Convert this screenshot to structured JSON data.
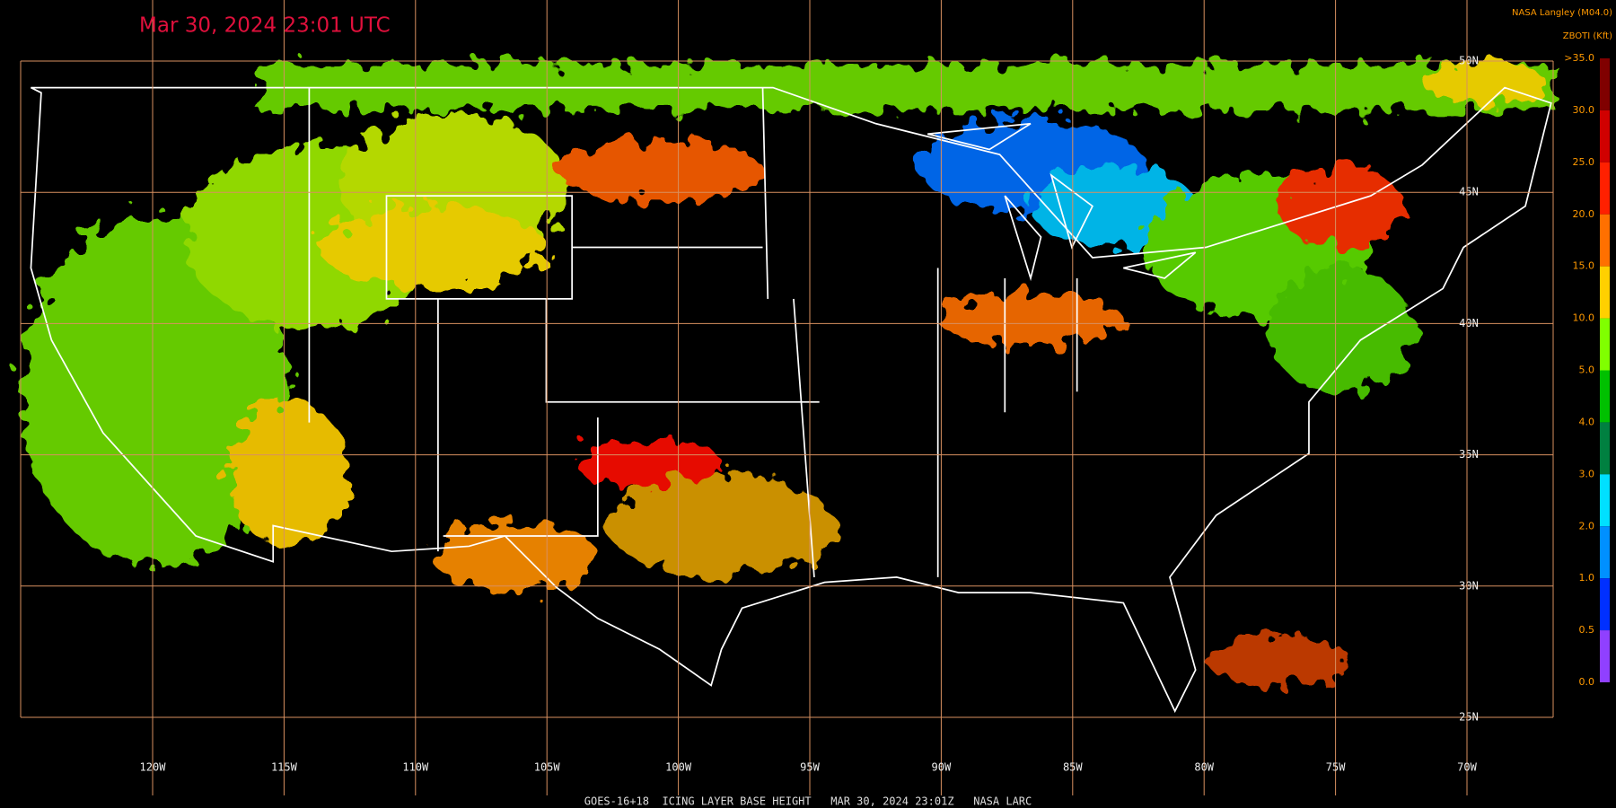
{
  "header": {
    "title": "Mar 30, 2024 23:01 UTC",
    "source": "NASA Langley (M04.0)",
    "product": "ZBOTI (Kft)"
  },
  "colorbar": {
    "labels": [
      ">35.0",
      "30.0",
      "25.0",
      "20.0",
      "15.0",
      "10.0",
      "5.0",
      "4.0",
      "3.0",
      "2.0",
      "1.0",
      "0.5",
      "0.0"
    ],
    "colors": [
      "#800000",
      "#d00000",
      "#ff2000",
      "#ff7000",
      "#ffd000",
      "#80ff00",
      "#00c000",
      "#008040",
      "#00e0ff",
      "#0090ff",
      "#0030ff",
      "#9040ff"
    ]
  },
  "grid": {
    "longitudes": [
      {
        "value": -120,
        "label": "120W"
      },
      {
        "value": -115,
        "label": "115W"
      },
      {
        "value": -110,
        "label": "110W"
      },
      {
        "value": -105,
        "label": "105W"
      },
      {
        "value": -100,
        "label": "100W"
      },
      {
        "value": -95,
        "label": "95W"
      },
      {
        "value": -90,
        "label": "90W"
      },
      {
        "value": -85,
        "label": "85W"
      },
      {
        "value": -80,
        "label": "80W"
      },
      {
        "value": -75,
        "label": "75W"
      },
      {
        "value": -70,
        "label": "70W"
      }
    ],
    "latitudes": [
      {
        "value": 50,
        "label": "50N"
      },
      {
        "value": 45,
        "label": "45N"
      },
      {
        "value": 40,
        "label": "40N"
      },
      {
        "value": 35,
        "label": "35N"
      },
      {
        "value": 30,
        "label": "30N"
      },
      {
        "value": 25,
        "label": "25N"
      }
    ]
  },
  "footer": "GOES-16+18  ICING LAYER BASE HEIGHT   MAR 30, 2024 23:01Z   NASA LARC"
}
